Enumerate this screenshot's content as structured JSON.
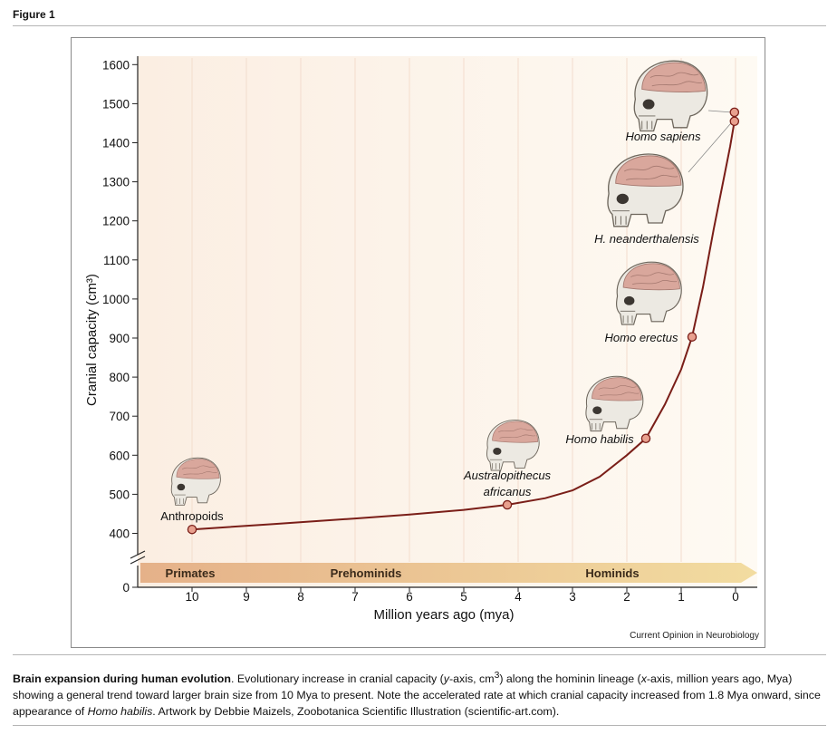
{
  "figure_label": "Figure 1",
  "credit": "Current Opinion in Neurobiology",
  "caption": {
    "title": "Brain expansion during human evolution",
    "p1": ". Evolutionary increase in cranial capacity (",
    "y_var": "y",
    "p2": "-axis, cm",
    "sup": "3",
    "p3": ") along the hominin lineage (",
    "x_var": "x",
    "p4": "-axis, million years ago, Mya) showing a general trend toward larger brain size from 10 Mya to present. Note the accelerated rate at which cranial capacity increased from 1.8 Mya onward, since appearance of ",
    "species": "Homo habilis",
    "p5": ". Artwork by Debbie Maizels, Zoobotanica Scientific Illustration (scientific-art.com)."
  },
  "colors": {
    "curve": "#7a1e18",
    "point_fill": "#e8a08e",
    "band_left": "#e5b189",
    "band_right": "#f2dca0",
    "skull": "#ece9e2",
    "brain": "#d9a79c"
  },
  "chart_data": {
    "type": "line",
    "xlabel": "Million years ago (mya)",
    "ylabel": "Cranial capacity (cm³)",
    "x_reversed": true,
    "xlim": [
      11,
      -0.4
    ],
    "ylim": [
      0,
      1640
    ],
    "y_axis_break": [
      0,
      350
    ],
    "x_ticks": [
      10,
      9,
      8,
      7,
      6,
      5,
      4,
      3,
      2,
      1,
      0
    ],
    "y_ticks": [
      400,
      500,
      600,
      700,
      800,
      900,
      1000,
      1100,
      1200,
      1300,
      1400,
      1500,
      1600
    ],
    "y_zero_label": "0",
    "points": [
      {
        "name": "Anthropoids",
        "x": 10.0,
        "y": 410,
        "italic": false
      },
      {
        "name": "Australopithecus africanus",
        "x": 4.2,
        "y": 473,
        "italic": true
      },
      {
        "name": "Homo habilis",
        "x": 1.65,
        "y": 643,
        "italic": true
      },
      {
        "name": "Homo erectus",
        "x": 0.8,
        "y": 903,
        "italic": true
      },
      {
        "name": "H. neanderthalensis",
        "x": 0.02,
        "y": 1455,
        "italic": true
      },
      {
        "name": "Homo sapiens",
        "x": 0.02,
        "y": 1478,
        "italic": true
      }
    ],
    "curve": [
      [
        10.0,
        410
      ],
      [
        8.5,
        424
      ],
      [
        7,
        438
      ],
      [
        6,
        448
      ],
      [
        5,
        460
      ],
      [
        4.2,
        473
      ],
      [
        3.5,
        490
      ],
      [
        3.0,
        510
      ],
      [
        2.5,
        545
      ],
      [
        2.0,
        600
      ],
      [
        1.65,
        643
      ],
      [
        1.3,
        730
      ],
      [
        1.0,
        820
      ],
      [
        0.8,
        903
      ],
      [
        0.6,
        1030
      ],
      [
        0.4,
        1180
      ],
      [
        0.2,
        1320
      ],
      [
        0.1,
        1390
      ],
      [
        0.02,
        1455
      ]
    ],
    "periods": [
      {
        "label": "Primates"
      },
      {
        "label": "Prehominids"
      },
      {
        "label": "Hominids"
      }
    ]
  }
}
